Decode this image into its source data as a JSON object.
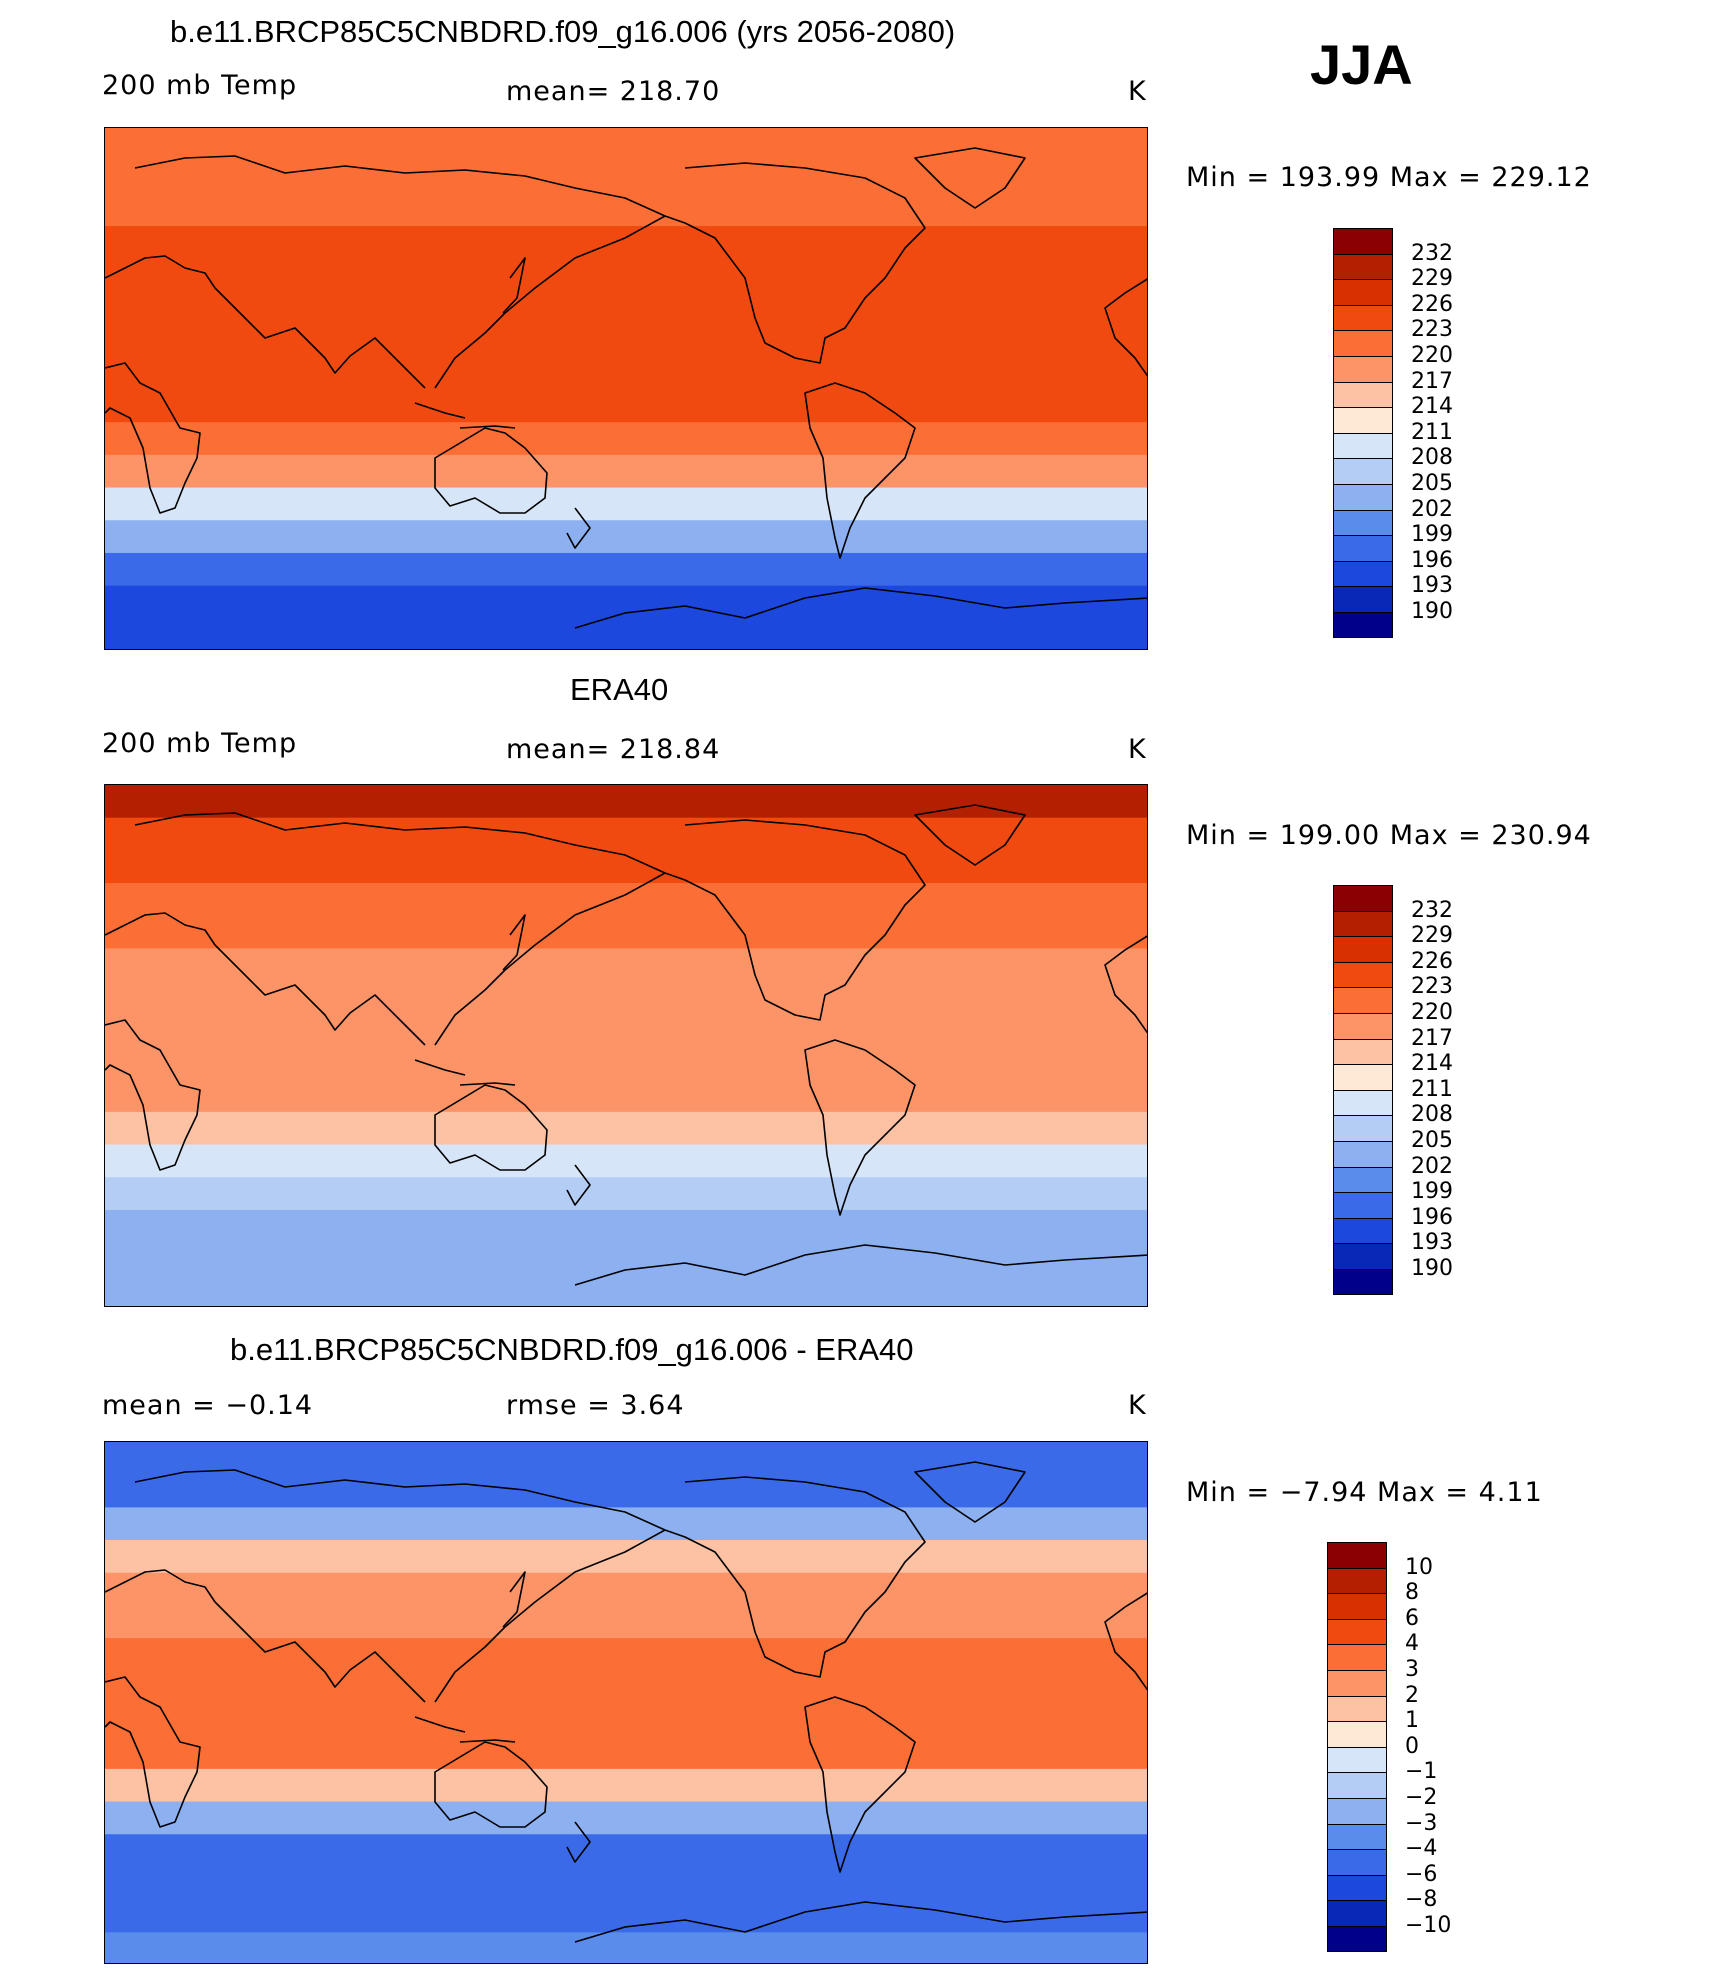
{
  "season": "JJA",
  "panels": [
    {
      "title": "b.e11.BRCP85C5CNBDRD.f09_g16.006 (yrs 2056-2080)",
      "left_label": "200 mb Temp",
      "center_label": "mean=  218.70",
      "units": "K",
      "minmax": "Min  =  193.99  Max  =  229.12",
      "colorbar": [
        "232",
        "229",
        "226",
        "223",
        "220",
        "217",
        "214",
        "211",
        "208",
        "205",
        "202",
        "199",
        "196",
        "193",
        "190"
      ]
    },
    {
      "title": "ERA40",
      "left_label": "200 mb Temp",
      "center_label": "mean=  218.84",
      "units": "K",
      "minmax": "Min  =  199.00  Max  =  230.94",
      "colorbar": [
        "232",
        "229",
        "226",
        "223",
        "220",
        "217",
        "214",
        "211",
        "208",
        "205",
        "202",
        "199",
        "196",
        "193",
        "190"
      ]
    },
    {
      "title": "b.e11.BRCP85C5CNBDRD.f09_g16.006 - ERA40",
      "left_label": "mean  =    −0.14",
      "center_label": "rmse  =      3.64",
      "units": "K",
      "minmax": "Min  =    −7.94  Max  =      4.11",
      "colorbar": [
        "10",
        "8",
        "6",
        "4",
        "3",
        "2",
        "1",
        "0",
        "−1",
        "−2",
        "−3",
        "−4",
        "−6",
        "−8",
        "−10"
      ]
    }
  ],
  "colors": {
    "scale": [
      "#8b0000",
      "#b22000",
      "#d93000",
      "#f04a10",
      "#fb6e36",
      "#fc9468",
      "#fdc2a4",
      "#fde9d6",
      "#d6e6f8",
      "#b3cdf5",
      "#8cb0f0",
      "#5a8cec",
      "#3a6ae8",
      "#1d48de",
      "#0a28b8",
      "#00008b"
    ]
  },
  "chart_data": [
    {
      "type": "heatmap",
      "title": "b.e11.BRCP85C5CNBDRD.f09_g16.006 (yrs 2056-2080)",
      "variable": "200 mb Temp",
      "units": "K",
      "mean": 218.7,
      "min": 193.99,
      "max": 229.12,
      "levels": [
        190,
        193,
        196,
        199,
        202,
        205,
        208,
        211,
        214,
        217,
        220,
        223,
        226,
        229,
        232
      ],
      "zonal_profile_90N_to_90S": [
        221,
        220,
        222,
        224,
        225,
        225,
        224,
        224,
        224,
        222,
        217,
        209,
        202,
        196,
        194,
        194
      ]
    },
    {
      "type": "heatmap",
      "title": "ERA40",
      "variable": "200 mb Temp",
      "units": "K",
      "mean": 218.84,
      "min": 199.0,
      "max": 230.94,
      "levels": [
        190,
        193,
        196,
        199,
        202,
        205,
        208,
        211,
        214,
        217,
        220,
        223,
        226,
        229,
        232
      ],
      "zonal_profile_90N_to_90S": [
        229,
        225,
        223,
        221,
        220,
        219,
        219,
        219,
        218,
        217,
        214,
        209,
        205,
        203,
        202,
        203
      ]
    },
    {
      "type": "heatmap",
      "title": "b.e11.BRCP85C5CNBDRD.f09_g16.006 - ERA40",
      "variable": "difference",
      "units": "K",
      "mean": -0.14,
      "rmse": 3.64,
      "min": -7.94,
      "max": 4.11,
      "levels": [
        -10,
        -8,
        -6,
        -4,
        -3,
        -2,
        -1,
        0,
        1,
        2,
        3,
        4,
        6,
        8,
        10
      ],
      "zonal_profile_90N_to_90S": [
        -6,
        -5,
        -3,
        1.5,
        2,
        2.5,
        3,
        3,
        3.5,
        3,
        1,
        -3,
        -5,
        -6,
        -5,
        -4
      ]
    }
  ]
}
